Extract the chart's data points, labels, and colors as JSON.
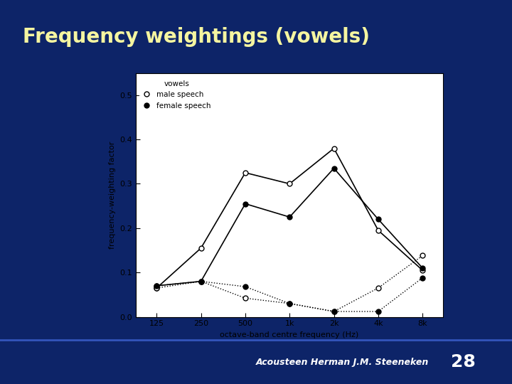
{
  "background_color": "#0d2468",
  "slide_title": "Frequency weightings (vowels)",
  "slide_title_color": "#f5f5a0",
  "slide_title_fontsize": 20,
  "footer_text": "Acousteen Herman J.M. Steeneken",
  "footer_number": "28",
  "footer_color": "#ffffff",
  "footer_bar_color": "#2244aa",
  "plot_bg": "#ffffff",
  "x_labels": [
    "125",
    "250",
    "500",
    "1k",
    "2k",
    "4k",
    "8k"
  ],
  "x_values": [
    125,
    250,
    500,
    1000,
    2000,
    4000,
    8000
  ],
  "male_solid": [
    0.065,
    0.155,
    0.325,
    0.3,
    0.38,
    0.195,
    0.105
  ],
  "female_solid": [
    0.07,
    0.08,
    0.255,
    0.225,
    0.335,
    0.22,
    0.11
  ],
  "male_dotted": [
    0.065,
    0.08,
    0.042,
    0.03,
    0.012,
    0.065,
    0.138
  ],
  "female_dotted": [
    0.07,
    0.08,
    0.068,
    0.03,
    0.012,
    0.012,
    0.088
  ],
  "legend_title": "vowels",
  "legend_male": "male speech",
  "legend_female": "female speech",
  "xlabel": "octave-band centre frequency (Hz)",
  "ylabel": "frequency-weighting factor",
  "ylim": [
    0.0,
    0.55
  ],
  "yticks": [
    0.0,
    0.1,
    0.2,
    0.3,
    0.4,
    0.5
  ]
}
